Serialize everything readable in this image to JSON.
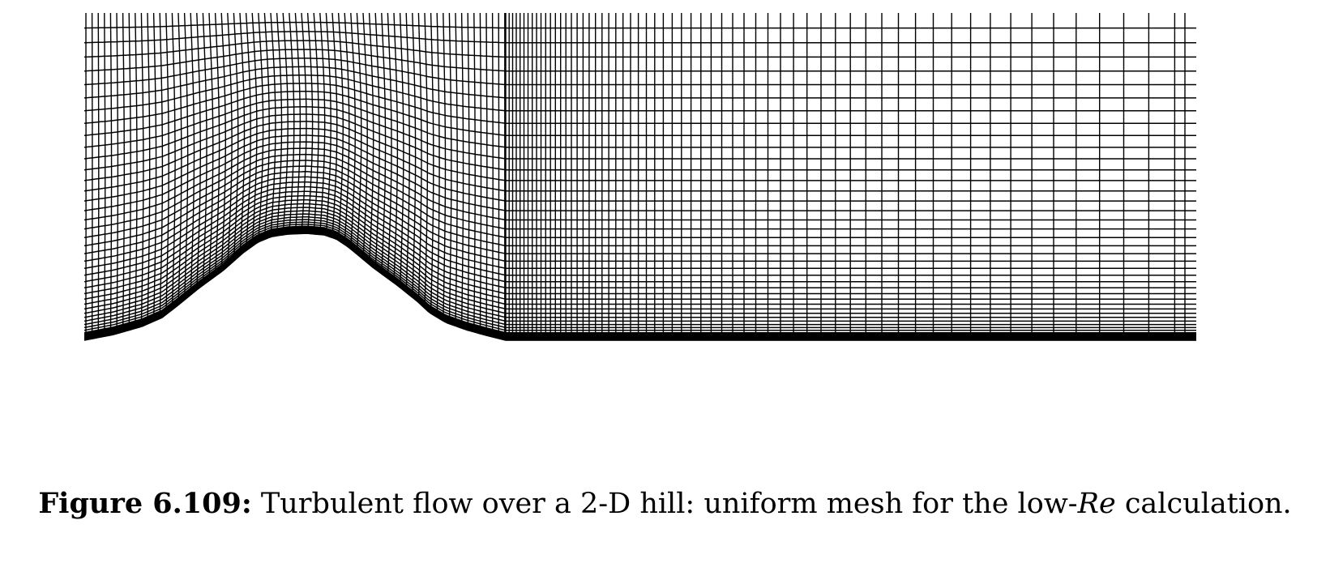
{
  "figure": {
    "caption_label": "Figure 6.109:",
    "caption_pre": " Turbulent flow over a 2-D hill: uniform mesh for the low-",
    "caption_italic": "Re",
    "caption_post": " calculation.",
    "line_color": "#000000",
    "background_color": "#ffffff"
  }
}
